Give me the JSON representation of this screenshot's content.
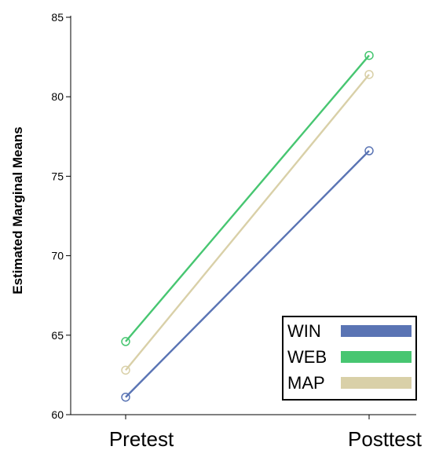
{
  "chart_data": {
    "type": "line",
    "title": "",
    "xlabel": "",
    "ylabel": "Estimated Marginal Means",
    "categories": [
      "Pretest",
      "Posttest"
    ],
    "ylim": [
      60,
      85
    ],
    "yticks": [
      60,
      65,
      70,
      75,
      80,
      85
    ],
    "grid": false,
    "legend_position": "bottom-right",
    "series": [
      {
        "name": "WIN",
        "color": "#5a74b4",
        "values": [
          61.1,
          76.6
        ]
      },
      {
        "name": "WEB",
        "color": "#47c671",
        "values": [
          64.6,
          82.6
        ]
      },
      {
        "name": "MAP",
        "color": "#d9d0a8",
        "values": [
          62.8,
          81.4
        ]
      }
    ]
  }
}
